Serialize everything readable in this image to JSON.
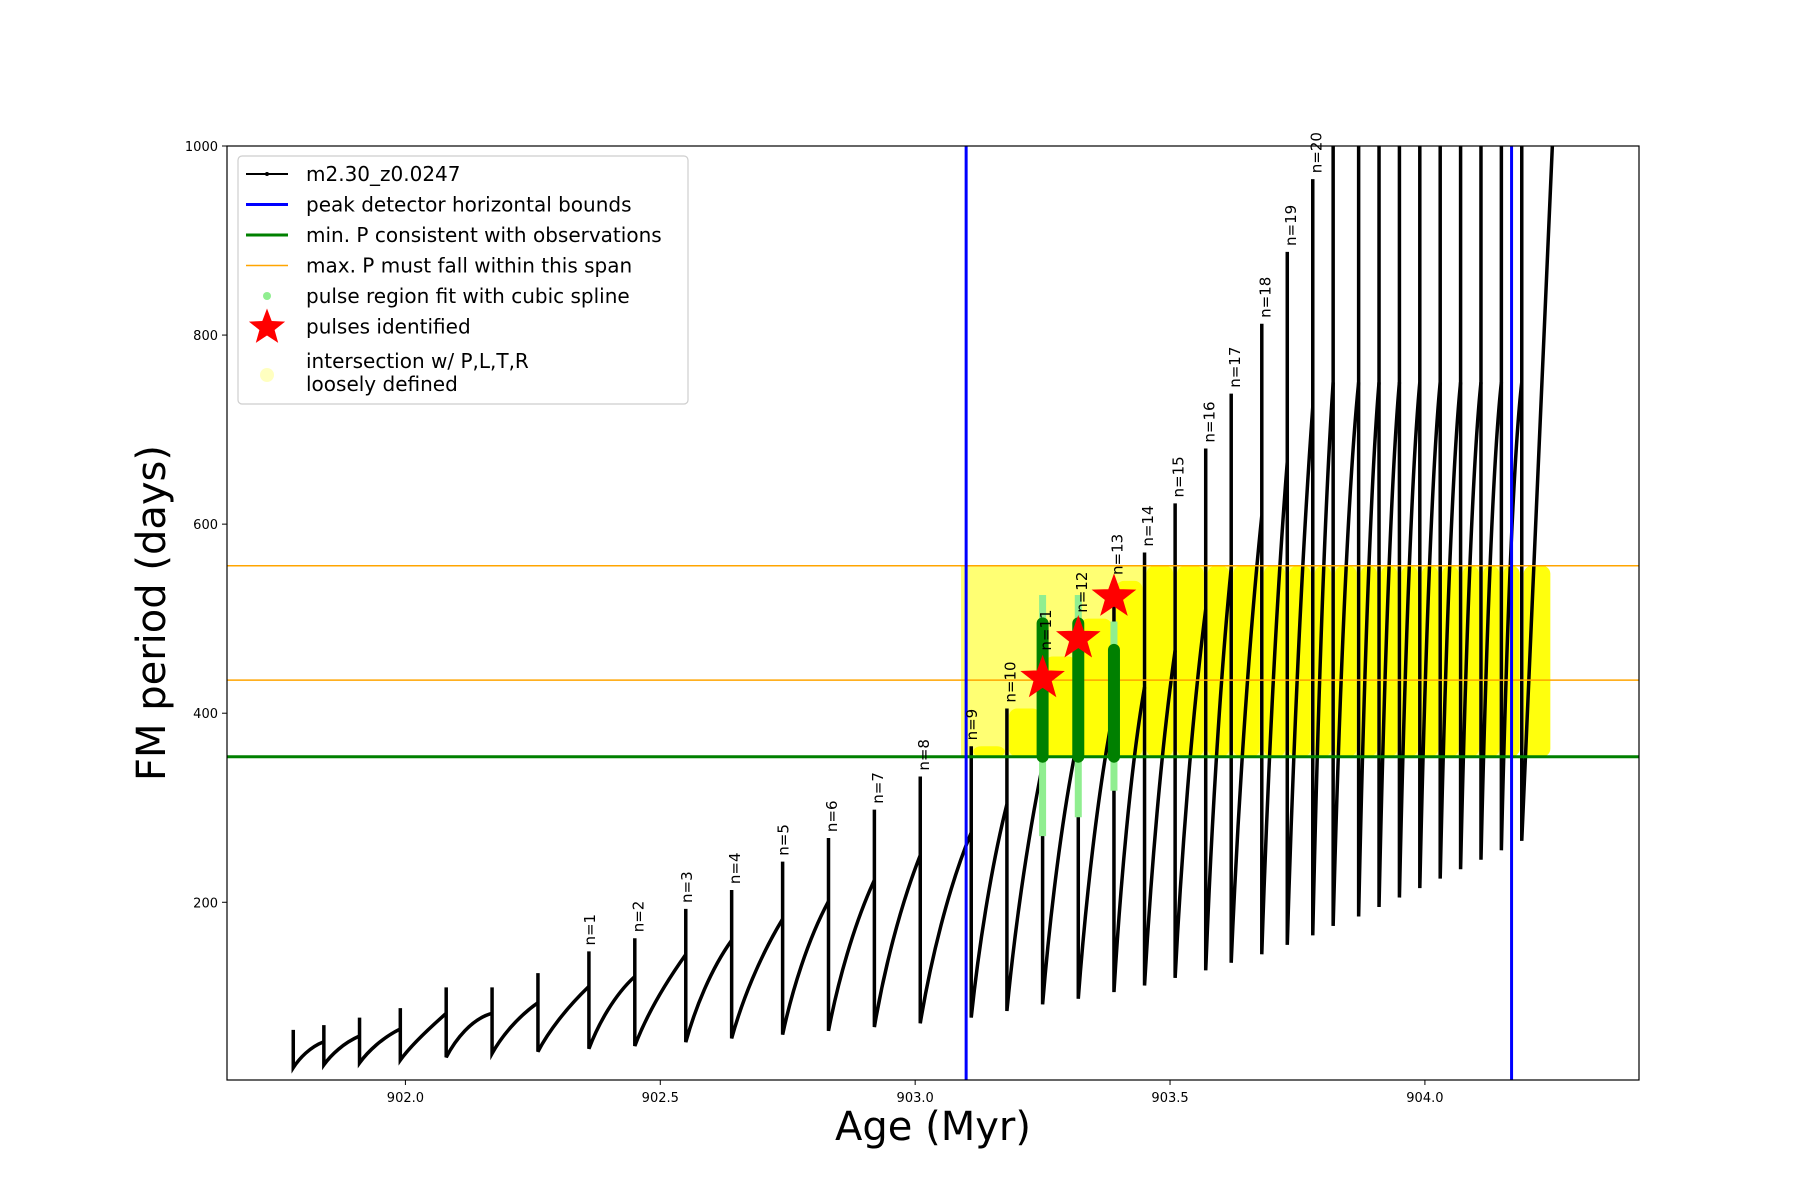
{
  "chart_data": {
    "type": "line",
    "title": "",
    "xlabel": "Age (Myr)",
    "ylabel": "FM period (days)",
    "xlim": [
      901.65,
      904.42
    ],
    "ylim": [
      12,
      1000
    ],
    "xticks": [
      902.0,
      902.5,
      903.0,
      903.5,
      904.0
    ],
    "xtick_labels": [
      "902.0",
      "902.5",
      "903.0",
      "903.5",
      "904.0"
    ],
    "yticks": [
      200,
      400,
      600,
      800,
      1000
    ],
    "ytick_labels": [
      "200",
      "400",
      "600",
      "800",
      "1000"
    ],
    "legend_position": "top-left",
    "colors": {
      "track": "#000000",
      "bounds": "#0000ff",
      "min_p": "#008000",
      "max_p": "#ffa500",
      "spline": "#90ee90",
      "star": "#ff0000",
      "intersection": "#ffff00",
      "intersection_legend": "#ffffc0"
    },
    "series": [
      {
        "name": "m2.30_z0.0247",
        "style": "black line with dot markers",
        "pulses": [
          {
            "x0": 901.78,
            "x1": 901.84,
            "min": 25,
            "max": 65
          },
          {
            "x0": 901.84,
            "x1": 901.91,
            "min": 28,
            "max": 70
          },
          {
            "x0": 901.91,
            "x1": 901.99,
            "min": 30,
            "max": 78
          },
          {
            "x0": 901.99,
            "x1": 902.08,
            "min": 33,
            "max": 88
          },
          {
            "x0": 902.08,
            "x1": 902.17,
            "min": 36,
            "max": 110
          },
          {
            "x0": 902.17,
            "x1": 902.26,
            "min": 40,
            "max": 110
          },
          {
            "x0": 902.26,
            "x1": 902.36,
            "min": 42,
            "max": 125
          },
          {
            "x0": 902.36,
            "x1": 902.45,
            "min": 45,
            "max": 148
          },
          {
            "x0": 902.45,
            "x1": 902.55,
            "min": 48,
            "max": 162
          },
          {
            "x0": 902.55,
            "x1": 902.64,
            "min": 52,
            "max": 193
          },
          {
            "x0": 902.64,
            "x1": 902.74,
            "min": 56,
            "max": 213
          },
          {
            "x0": 902.74,
            "x1": 902.83,
            "min": 60,
            "max": 243
          },
          {
            "x0": 902.83,
            "x1": 902.92,
            "min": 64,
            "max": 268
          },
          {
            "x0": 902.92,
            "x1": 903.01,
            "min": 68,
            "max": 298
          },
          {
            "x0": 903.01,
            "x1": 903.11,
            "min": 72,
            "max": 333
          },
          {
            "x0": 903.11,
            "x1": 903.18,
            "min": 78,
            "max": 365
          },
          {
            "x0": 903.18,
            "x1": 903.25,
            "min": 85,
            "max": 405
          },
          {
            "x0": 903.25,
            "x1": 903.32,
            "min": 92,
            "max": 460
          },
          {
            "x0": 903.32,
            "x1": 903.39,
            "min": 98,
            "max": 500
          },
          {
            "x0": 903.39,
            "x1": 903.45,
            "min": 105,
            "max": 540
          },
          {
            "x0": 903.45,
            "x1": 903.51,
            "min": 112,
            "max": 570
          },
          {
            "x0": 903.51,
            "x1": 903.57,
            "min": 120,
            "max": 622
          },
          {
            "x0": 903.57,
            "x1": 903.62,
            "min": 128,
            "max": 680
          },
          {
            "x0": 903.62,
            "x1": 903.68,
            "min": 136,
            "max": 738
          },
          {
            "x0": 903.68,
            "x1": 903.73,
            "min": 145,
            "max": 812
          },
          {
            "x0": 903.73,
            "x1": 903.78,
            "min": 155,
            "max": 888
          },
          {
            "x0": 903.78,
            "x1": 903.82,
            "min": 165,
            "max": 965
          },
          {
            "x0": 903.82,
            "x1": 903.87,
            "min": 175,
            "max": 1000
          },
          {
            "x0": 903.87,
            "x1": 903.91,
            "min": 185,
            "max": 1000
          },
          {
            "x0": 903.91,
            "x1": 903.95,
            "min": 195,
            "max": 1000
          },
          {
            "x0": 903.95,
            "x1": 903.99,
            "min": 205,
            "max": 1000
          },
          {
            "x0": 903.99,
            "x1": 904.03,
            "min": 215,
            "max": 1000
          },
          {
            "x0": 904.03,
            "x1": 904.07,
            "min": 225,
            "max": 1000
          },
          {
            "x0": 904.07,
            "x1": 904.11,
            "min": 235,
            "max": 1000
          },
          {
            "x0": 904.11,
            "x1": 904.15,
            "min": 245,
            "max": 1000
          },
          {
            "x0": 904.15,
            "x1": 904.19,
            "min": 255,
            "max": 1000
          },
          {
            "x0": 904.19,
            "x1": 904.25,
            "min": 265,
            "max": 1000
          }
        ]
      },
      {
        "name": "peak detector horizontal bounds",
        "type": "vline",
        "x": [
          903.1,
          904.17
        ]
      },
      {
        "name": "min. P consistent with observations",
        "type": "hline",
        "y": 354
      },
      {
        "name": "max. P must fall within this span",
        "type": "hline",
        "y": [
          435,
          556
        ]
      },
      {
        "name": "pulse region fit with cubic spline",
        "type": "scatter",
        "points": [
          {
            "x": 903.25,
            "y0": 270,
            "y1": 525
          },
          {
            "x": 903.32,
            "y0": 290,
            "y1": 525
          },
          {
            "x": 903.39,
            "y0": 318,
            "y1": 497
          }
        ]
      },
      {
        "name": "pulses identified",
        "type": "scatter",
        "marker": "star",
        "points": [
          {
            "x": 903.25,
            "y": 437
          },
          {
            "x": 903.32,
            "y": 479
          },
          {
            "x": 903.39,
            "y": 523
          }
        ]
      },
      {
        "name": "intersection w/ P,L,T,R\nloosely defined",
        "type": "scatter",
        "region": {
          "x0": 903.09,
          "x1": 904.17,
          "y0": 354,
          "y1": 556
        }
      }
    ],
    "annotations": [
      {
        "text": "n=1",
        "x": 902.36,
        "y": 150
      },
      {
        "text": "n=2",
        "x": 902.455,
        "y": 164
      },
      {
        "text": "n=3",
        "x": 902.55,
        "y": 195
      },
      {
        "text": "n=4",
        "x": 902.645,
        "y": 215
      },
      {
        "text": "n=5",
        "x": 902.74,
        "y": 245
      },
      {
        "text": "n=6",
        "x": 902.835,
        "y": 270
      },
      {
        "text": "n=7",
        "x": 902.925,
        "y": 300
      },
      {
        "text": "n=8",
        "x": 903.015,
        "y": 335
      },
      {
        "text": "n=9",
        "x": 903.11,
        "y": 367
      },
      {
        "text": "n=10",
        "x": 903.185,
        "y": 407
      },
      {
        "text": "n=11",
        "x": 903.255,
        "y": 462
      },
      {
        "text": "n=12",
        "x": 903.325,
        "y": 502
      },
      {
        "text": "n=13",
        "x": 903.395,
        "y": 542
      },
      {
        "text": "n=14",
        "x": 903.455,
        "y": 572
      },
      {
        "text": "n=15",
        "x": 903.515,
        "y": 624
      },
      {
        "text": "n=16",
        "x": 903.575,
        "y": 682
      },
      {
        "text": "n=17",
        "x": 903.625,
        "y": 740
      },
      {
        "text": "n=18",
        "x": 903.685,
        "y": 814
      },
      {
        "text": "n=19",
        "x": 903.735,
        "y": 890
      },
      {
        "text": "n=20",
        "x": 903.785,
        "y": 967
      }
    ]
  }
}
